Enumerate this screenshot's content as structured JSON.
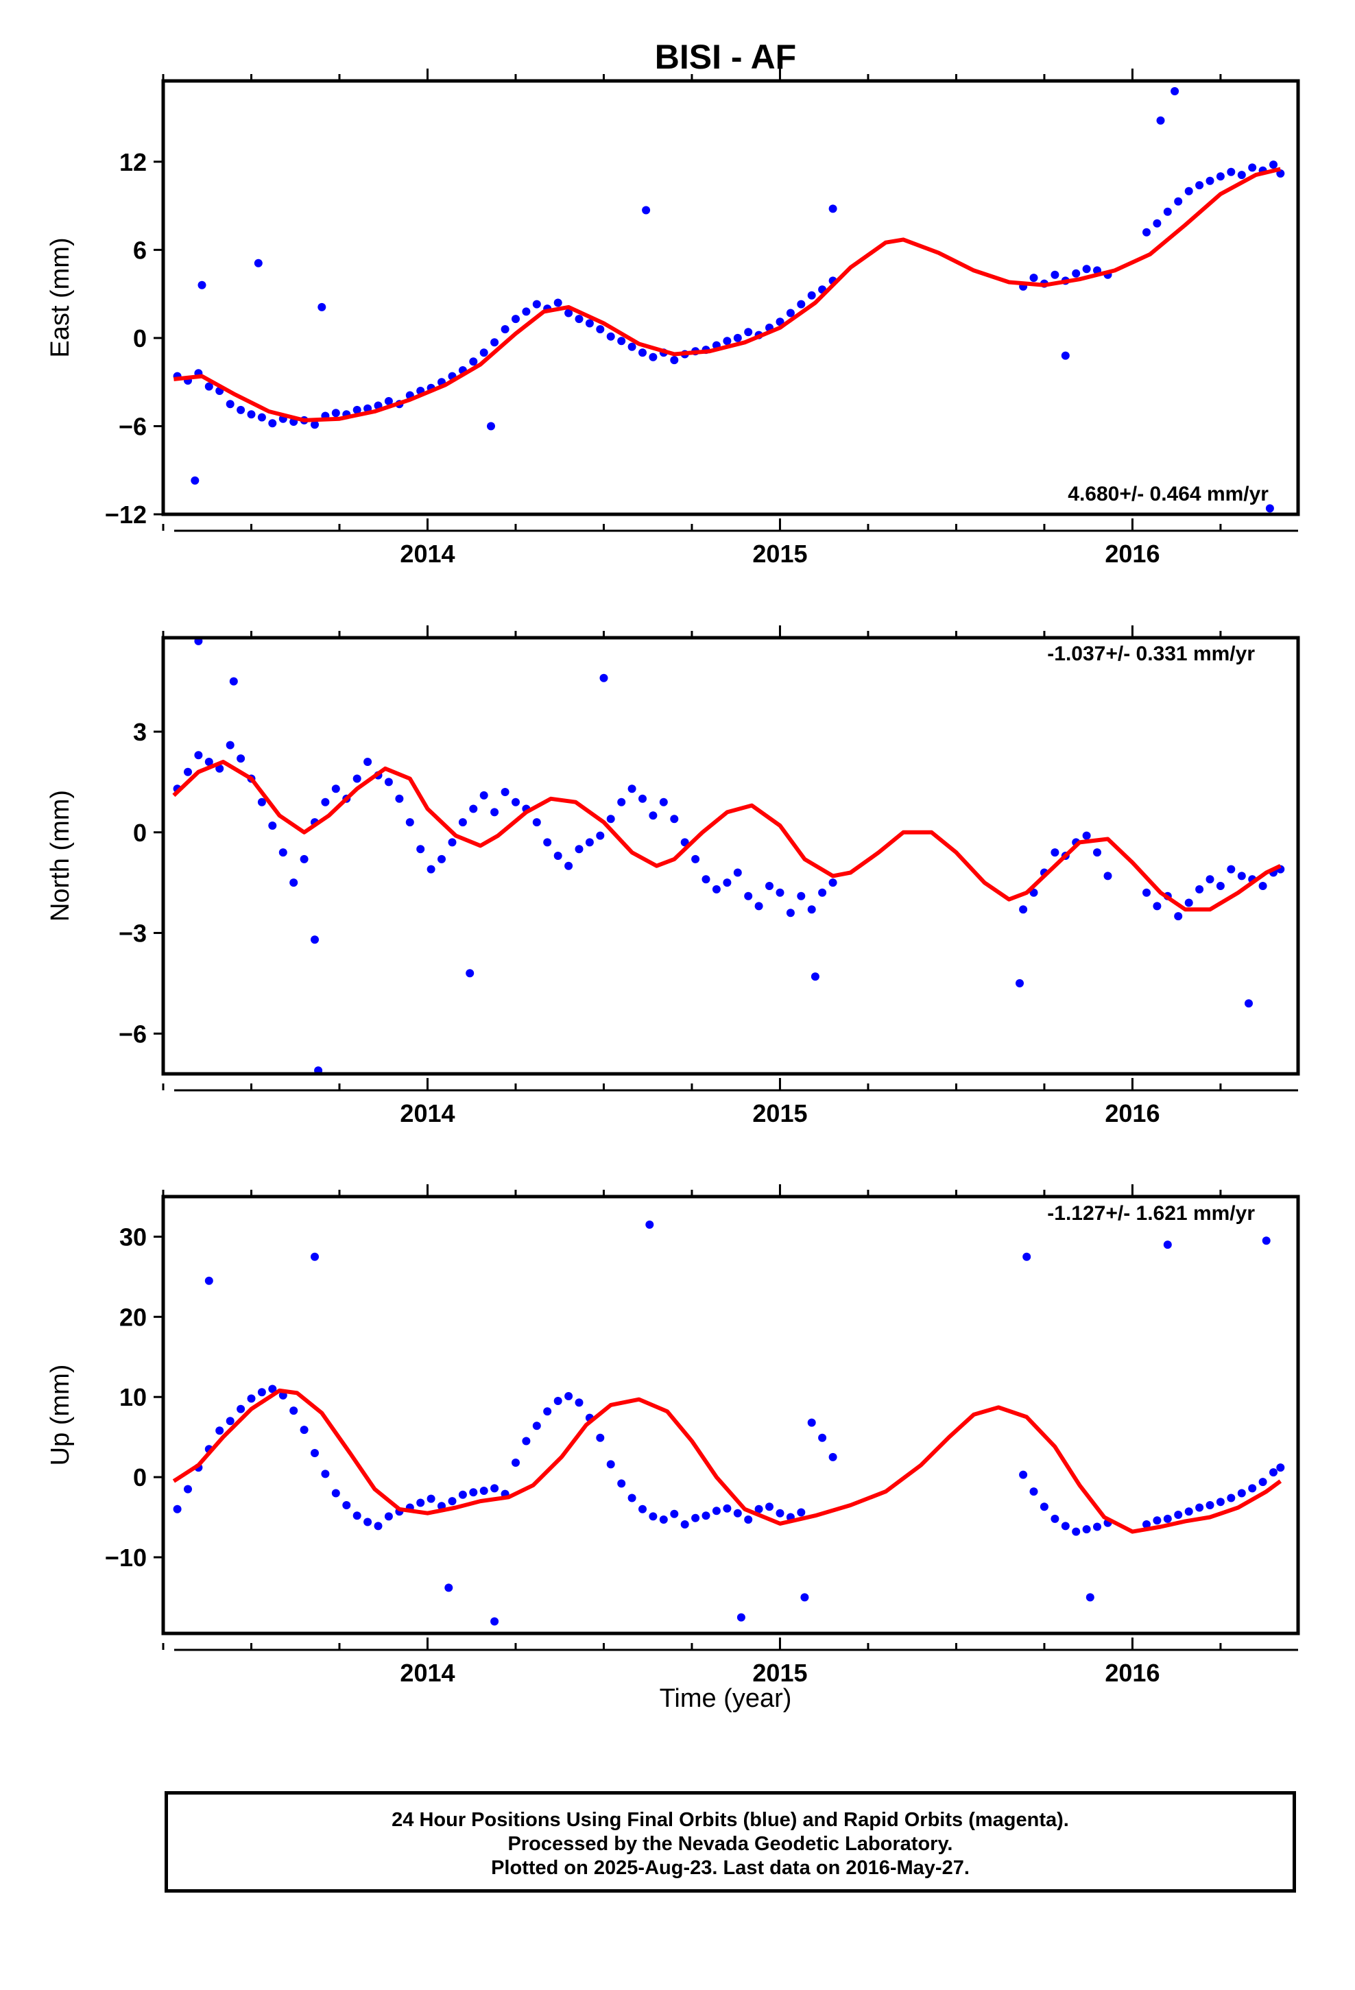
{
  "page": {
    "title": "BISI - AF",
    "x_axis_label": "Time (year)"
  },
  "footer": {
    "line1": "24 Hour Positions Using Final Orbits (blue) and Rapid Orbits (magenta).",
    "line2": "Processed by the Nevada Geodetic Laboratory.",
    "line3": "Plotted on 2025-Aug-23. Last data on 2016-May-27."
  },
  "colors": {
    "final_orbits": "#0000ff",
    "model": "#ff0000",
    "frame": "#000000"
  },
  "chart_data": [
    {
      "type": "scatter",
      "panel": "east",
      "ylabel": "East (mm)",
      "xlabel": "",
      "annotation": "4.680+/- 0.464 mm/yr",
      "xlim": [
        2013.25,
        2016.47
      ],
      "ylim": [
        -12,
        17.5
      ],
      "yticks": [
        -12,
        -6,
        0,
        6,
        12
      ],
      "xticks": [
        2014,
        2015,
        2016
      ],
      "x_minor_ticks": [
        2013.25,
        2013.5,
        2013.75,
        2014.25,
        2014.5,
        2014.75,
        2015.25,
        2015.5,
        2015.75,
        2016.25
      ],
      "series": [
        {
          "kind": "points",
          "color": "#0000ff",
          "x": [
            2013.29,
            2013.32,
            2013.35,
            2013.38,
            2013.41,
            2013.44,
            2013.47,
            2013.5,
            2013.53,
            2013.56,
            2013.59,
            2013.62,
            2013.65,
            2013.68,
            2013.71,
            2013.74,
            2013.77,
            2013.8,
            2013.83,
            2013.86,
            2013.89,
            2013.92,
            2013.95,
            2013.98,
            2014.01,
            2014.04,
            2014.07,
            2014.1,
            2014.13,
            2014.16,
            2014.19,
            2014.22,
            2014.25,
            2014.28,
            2014.31,
            2014.34,
            2014.37,
            2014.4,
            2014.43,
            2014.46,
            2014.49,
            2014.52,
            2014.55,
            2014.58,
            2014.61,
            2014.64,
            2014.67,
            2014.7,
            2014.73,
            2014.76,
            2014.79,
            2014.82,
            2014.85,
            2014.88,
            2014.91,
            2014.94,
            2014.97,
            2015.0,
            2015.03,
            2015.06,
            2015.09,
            2015.12,
            2015.15,
            2015.69,
            2015.72,
            2015.75,
            2015.78,
            2015.81,
            2015.84,
            2015.87,
            2015.9,
            2015.93,
            2016.04,
            2016.07,
            2016.1,
            2016.13,
            2016.16,
            2016.19,
            2016.22,
            2016.25,
            2016.28,
            2016.31,
            2016.34,
            2016.37,
            2016.4,
            2016.42,
            2013.34,
            2013.36,
            2013.52,
            2013.7,
            2014.18,
            2014.62,
            2015.15,
            2015.81,
            2016.08,
            2016.12,
            2016.39
          ],
          "y": [
            -2.6,
            -2.9,
            -2.4,
            -3.3,
            -3.6,
            -4.5,
            -4.9,
            -5.2,
            -5.4,
            -5.8,
            -5.5,
            -5.7,
            -5.6,
            -5.9,
            -5.3,
            -5.1,
            -5.2,
            -4.9,
            -4.8,
            -4.6,
            -4.3,
            -4.5,
            -3.9,
            -3.6,
            -3.4,
            -3.0,
            -2.6,
            -2.2,
            -1.6,
            -1.0,
            -0.3,
            0.6,
            1.3,
            1.8,
            2.3,
            2.0,
            2.4,
            1.7,
            1.3,
            1.0,
            0.6,
            0.1,
            -0.2,
            -0.6,
            -1.0,
            -1.3,
            -1.0,
            -1.5,
            -1.1,
            -0.9,
            -0.8,
            -0.5,
            -0.2,
            0.0,
            0.4,
            0.2,
            0.7,
            1.1,
            1.7,
            2.3,
            2.9,
            3.3,
            3.9,
            3.5,
            4.1,
            3.7,
            4.3,
            3.9,
            4.4,
            4.7,
            4.6,
            4.3,
            7.2,
            7.8,
            8.6,
            9.3,
            10.0,
            10.4,
            10.7,
            11.0,
            11.3,
            11.1,
            11.6,
            11.4,
            11.8,
            11.2,
            -9.7,
            3.6,
            5.1,
            2.1,
            -6.0,
            8.7,
            8.8,
            -1.2,
            14.8,
            16.8,
            -11.6
          ]
        },
        {
          "kind": "model",
          "color": "#ff0000",
          "x": [
            2013.28,
            2013.36,
            2013.45,
            2013.55,
            2013.65,
            2013.75,
            2013.85,
            2013.95,
            2014.05,
            2014.15,
            2014.25,
            2014.33,
            2014.4,
            2014.5,
            2014.6,
            2014.7,
            2014.8,
            2014.9,
            2015.0,
            2015.1,
            2015.2,
            2015.3,
            2015.35,
            2015.45,
            2015.55,
            2015.65,
            2015.75,
            2015.85,
            2015.95,
            2016.05,
            2016.15,
            2016.25,
            2016.35,
            2016.42
          ],
          "y": [
            -2.8,
            -2.6,
            -3.8,
            -5.0,
            -5.6,
            -5.5,
            -5.0,
            -4.2,
            -3.2,
            -1.8,
            0.3,
            1.8,
            2.1,
            1.0,
            -0.4,
            -1.1,
            -0.9,
            -0.3,
            0.7,
            2.4,
            4.8,
            6.5,
            6.7,
            5.8,
            4.6,
            3.8,
            3.6,
            4.0,
            4.6,
            5.7,
            7.7,
            9.8,
            11.1,
            11.5
          ]
        }
      ]
    },
    {
      "type": "scatter",
      "panel": "north",
      "ylabel": "North (mm)",
      "xlabel": "",
      "annotation": "-1.037+/- 0.331 mm/yr",
      "xlim": [
        2013.25,
        2016.47
      ],
      "ylim": [
        -7.2,
        5.8
      ],
      "yticks": [
        -6,
        -3,
        0,
        3
      ],
      "xticks": [
        2014,
        2015,
        2016
      ],
      "x_minor_ticks": [
        2013.25,
        2013.5,
        2013.75,
        2014.25,
        2014.5,
        2014.75,
        2015.25,
        2015.5,
        2015.75,
        2016.25
      ],
      "series": [
        {
          "kind": "points",
          "color": "#0000ff",
          "x": [
            2013.29,
            2013.32,
            2013.35,
            2013.38,
            2013.41,
            2013.44,
            2013.47,
            2013.5,
            2013.53,
            2013.56,
            2013.59,
            2013.62,
            2013.65,
            2013.68,
            2013.71,
            2013.74,
            2013.77,
            2013.8,
            2013.83,
            2013.86,
            2013.89,
            2013.92,
            2013.95,
            2013.98,
            2014.01,
            2014.04,
            2014.07,
            2014.1,
            2014.13,
            2014.16,
            2014.19,
            2014.22,
            2014.25,
            2014.28,
            2014.31,
            2014.34,
            2014.37,
            2014.4,
            2014.43,
            2014.46,
            2014.49,
            2014.52,
            2014.55,
            2014.58,
            2014.61,
            2014.64,
            2014.67,
            2014.7,
            2014.73,
            2014.76,
            2014.79,
            2014.82,
            2014.85,
            2014.88,
            2014.91,
            2014.94,
            2014.97,
            2015.0,
            2015.03,
            2015.06,
            2015.09,
            2015.12,
            2015.15,
            2015.69,
            2015.72,
            2015.75,
            2015.78,
            2015.81,
            2015.84,
            2015.87,
            2015.9,
            2015.93,
            2016.04,
            2016.07,
            2016.1,
            2016.13,
            2016.16,
            2016.19,
            2016.22,
            2016.25,
            2016.28,
            2016.31,
            2016.34,
            2016.37,
            2016.4,
            2016.42,
            2013.35,
            2013.45,
            2013.69,
            2014.12,
            2014.5,
            2015.1,
            2015.68,
            2016.33,
            2013.68
          ],
          "y": [
            1.3,
            1.8,
            2.3,
            2.1,
            1.9,
            2.6,
            2.2,
            1.6,
            0.9,
            0.2,
            -0.6,
            -1.5,
            -0.8,
            0.3,
            0.9,
            1.3,
            1.0,
            1.6,
            2.1,
            1.7,
            1.5,
            1.0,
            0.3,
            -0.5,
            -1.1,
            -0.8,
            -0.3,
            0.3,
            0.7,
            1.1,
            0.6,
            1.2,
            0.9,
            0.7,
            0.3,
            -0.3,
            -0.7,
            -1.0,
            -0.5,
            -0.3,
            -0.1,
            0.4,
            0.9,
            1.3,
            1.0,
            0.5,
            0.9,
            0.4,
            -0.3,
            -0.8,
            -1.4,
            -1.7,
            -1.5,
            -1.2,
            -1.9,
            -2.2,
            -1.6,
            -1.8,
            -2.4,
            -1.9,
            -2.3,
            -1.8,
            -1.5,
            -2.3,
            -1.8,
            -1.2,
            -0.6,
            -0.7,
            -0.3,
            -0.1,
            -0.6,
            -1.3,
            -1.8,
            -2.2,
            -1.9,
            -2.5,
            -2.1,
            -1.7,
            -1.4,
            -1.6,
            -1.1,
            -1.3,
            -1.4,
            -1.6,
            -1.2,
            -1.1,
            5.7,
            4.5,
            -7.1,
            -4.2,
            4.6,
            -4.3,
            -4.5,
            -5.1,
            -3.2
          ],
          "_note": ""
        },
        {
          "kind": "model",
          "color": "#ff0000",
          "x": [
            2013.28,
            2013.35,
            2013.42,
            2013.5,
            2013.58,
            2013.65,
            2013.72,
            2013.8,
            2013.88,
            2013.95,
            2014.0,
            2014.08,
            2014.15,
            2014.2,
            2014.28,
            2014.35,
            2014.42,
            2014.5,
            2014.58,
            2014.65,
            2014.7,
            2014.78,
            2014.85,
            2014.92,
            2015.0,
            2015.07,
            2015.15,
            2015.2,
            2015.28,
            2015.35,
            2015.43,
            2015.5,
            2015.58,
            2015.65,
            2015.7,
            2015.78,
            2015.85,
            2015.93,
            2016.0,
            2016.08,
            2016.15,
            2016.22,
            2016.3,
            2016.38,
            2016.42
          ],
          "y": [
            1.1,
            1.8,
            2.1,
            1.6,
            0.5,
            0.0,
            0.5,
            1.3,
            1.9,
            1.6,
            0.7,
            -0.1,
            -0.4,
            -0.1,
            0.6,
            1.0,
            0.9,
            0.3,
            -0.6,
            -1.0,
            -0.8,
            0.0,
            0.6,
            0.8,
            0.2,
            -0.8,
            -1.3,
            -1.2,
            -0.6,
            0.0,
            0.0,
            -0.6,
            -1.5,
            -2.0,
            -1.8,
            -1.0,
            -0.3,
            -0.2,
            -0.9,
            -1.8,
            -2.3,
            -2.3,
            -1.8,
            -1.2,
            -1.0
          ]
        }
      ]
    },
    {
      "type": "scatter",
      "panel": "up",
      "ylabel": "Up (mm)",
      "xlabel": "Time (year)",
      "annotation": "-1.127+/- 1.621 mm/yr",
      "xlim": [
        2013.25,
        2016.47
      ],
      "ylim": [
        -19.5,
        35
      ],
      "yticks": [
        -10,
        0,
        10,
        20,
        30
      ],
      "xticks": [
        2014,
        2015,
        2016
      ],
      "x_minor_ticks": [
        2013.25,
        2013.5,
        2013.75,
        2014.25,
        2014.5,
        2014.75,
        2015.25,
        2015.5,
        2015.75,
        2016.25
      ],
      "series": [
        {
          "kind": "points",
          "color": "#0000ff",
          "x": [
            2013.29,
            2013.32,
            2013.35,
            2013.38,
            2013.41,
            2013.44,
            2013.47,
            2013.5,
            2013.53,
            2013.56,
            2013.59,
            2013.62,
            2013.65,
            2013.68,
            2013.71,
            2013.74,
            2013.77,
            2013.8,
            2013.83,
            2013.86,
            2013.89,
            2013.92,
            2013.95,
            2013.98,
            2014.01,
            2014.04,
            2014.07,
            2014.1,
            2014.13,
            2014.16,
            2014.19,
            2014.22,
            2014.25,
            2014.28,
            2014.31,
            2014.34,
            2014.37,
            2014.4,
            2014.43,
            2014.46,
            2014.49,
            2014.52,
            2014.55,
            2014.58,
            2014.61,
            2014.64,
            2014.67,
            2014.7,
            2014.73,
            2014.76,
            2014.79,
            2014.82,
            2014.85,
            2014.88,
            2014.91,
            2014.94,
            2014.97,
            2015.0,
            2015.03,
            2015.06,
            2015.09,
            2015.12,
            2015.15,
            2015.69,
            2015.72,
            2015.75,
            2015.78,
            2015.81,
            2015.84,
            2015.87,
            2015.9,
            2015.93,
            2016.04,
            2016.07,
            2016.1,
            2016.13,
            2016.16,
            2016.19,
            2016.22,
            2016.25,
            2016.28,
            2016.31,
            2016.34,
            2016.37,
            2016.4,
            2016.42,
            2013.38,
            2013.68,
            2014.06,
            2014.19,
            2014.63,
            2014.89,
            2015.07,
            2015.7,
            2015.88,
            2016.1,
            2016.38
          ],
          "y": [
            -4.0,
            -1.5,
            1.2,
            3.5,
            5.8,
            7.0,
            8.5,
            9.8,
            10.6,
            11.0,
            10.2,
            8.3,
            5.9,
            3.0,
            0.4,
            -2.0,
            -3.5,
            -4.8,
            -5.6,
            -6.1,
            -4.9,
            -4.3,
            -3.8,
            -3.2,
            -2.7,
            -3.6,
            -3.0,
            -2.2,
            -1.9,
            -1.7,
            -1.4,
            -2.1,
            1.8,
            4.5,
            6.4,
            8.2,
            9.5,
            10.1,
            9.3,
            7.4,
            4.9,
            1.6,
            -0.8,
            -2.6,
            -4.0,
            -4.9,
            -5.3,
            -4.6,
            -5.9,
            -5.1,
            -4.8,
            -4.2,
            -3.9,
            -4.5,
            -5.3,
            -4.0,
            -3.7,
            -4.5,
            -5.0,
            -4.4,
            6.8,
            4.9,
            2.5,
            0.3,
            -1.8,
            -3.7,
            -5.2,
            -6.1,
            -6.8,
            -6.5,
            -6.2,
            -5.7,
            -5.9,
            -5.4,
            -5.2,
            -4.7,
            -4.3,
            -3.8,
            -3.5,
            -3.1,
            -2.6,
            -2.0,
            -1.4,
            -0.6,
            0.6,
            1.2,
            24.5,
            27.5,
            -13.8,
            -18.0,
            31.5,
            -17.5,
            -15.0,
            27.5,
            -15.0,
            29.0,
            29.5
          ]
        },
        {
          "kind": "model",
          "color": "#ff0000",
          "x": [
            2013.28,
            2013.35,
            2013.42,
            2013.5,
            2013.58,
            2013.63,
            2013.7,
            2013.78,
            2013.85,
            2013.92,
            2014.0,
            2014.08,
            2014.15,
            2014.23,
            2014.3,
            2014.38,
            2014.45,
            2014.52,
            2014.6,
            2014.68,
            2014.75,
            2014.82,
            2014.9,
            2015.0,
            2015.1,
            2015.2,
            2015.3,
            2015.4,
            2015.48,
            2015.55,
            2015.62,
            2015.7,
            2015.78,
            2015.85,
            2015.92,
            2016.0,
            2016.08,
            2016.15,
            2016.22,
            2016.3,
            2016.38,
            2016.42
          ],
          "y": [
            -0.5,
            1.5,
            5.0,
            8.5,
            10.8,
            10.5,
            8.0,
            3.0,
            -1.5,
            -4.0,
            -4.5,
            -3.8,
            -3.0,
            -2.5,
            -1.0,
            2.5,
            6.5,
            9.0,
            9.7,
            8.2,
            4.5,
            0.0,
            -4.0,
            -5.8,
            -4.8,
            -3.5,
            -1.8,
            1.5,
            5.0,
            7.8,
            8.7,
            7.5,
            3.8,
            -1.0,
            -5.0,
            -6.8,
            -6.2,
            -5.5,
            -5.0,
            -3.8,
            -1.8,
            -0.5
          ]
        }
      ]
    }
  ]
}
